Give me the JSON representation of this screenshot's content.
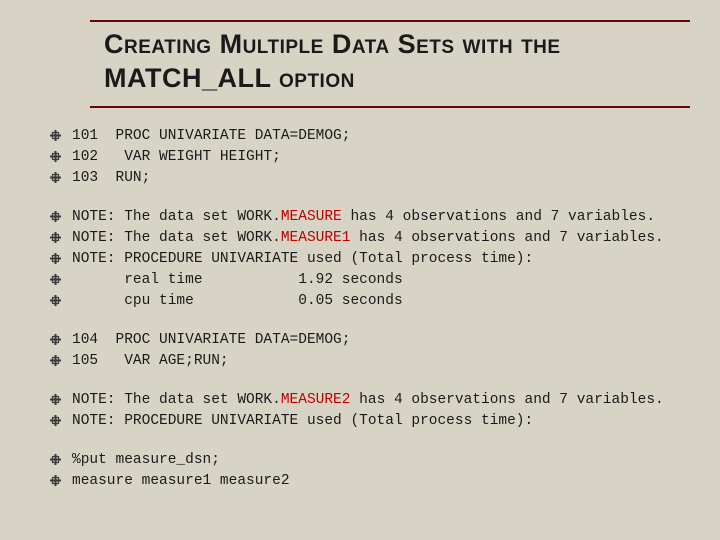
{
  "title": "Creating Multiple Data Sets with the MATCH_ALL option",
  "colors": {
    "background": "#d8d4c5",
    "title_rule": "#6b0000",
    "text": "#1a1a1a",
    "highlight": "#c00000",
    "bullet": "#3a3a3a"
  },
  "typography": {
    "title_fontsize": 27,
    "code_fontsize": 14.5,
    "code_family": "Courier New"
  },
  "lines": [
    {
      "segments": [
        {
          "t": "101  PROC UNIVARIATE DATA=DEMOG;"
        }
      ]
    },
    {
      "segments": [
        {
          "t": "102   VAR WEIGHT HEIGHT;"
        }
      ]
    },
    {
      "segments": [
        {
          "t": "103  RUN;"
        }
      ]
    },
    {
      "gap": true
    },
    {
      "segments": [
        {
          "t": "NOTE: The data set WORK."
        },
        {
          "t": "MEASURE",
          "red": true
        },
        {
          "t": " has 4 observations and 7 variables."
        }
      ]
    },
    {
      "segments": [
        {
          "t": "NOTE: The data set WORK."
        },
        {
          "t": "MEASURE1",
          "red": true
        },
        {
          "t": " has 4 observations and 7 variables."
        }
      ]
    },
    {
      "segments": [
        {
          "t": "NOTE: PROCEDURE UNIVARIATE used (Total process time):"
        }
      ]
    },
    {
      "segments": [
        {
          "t": "      real time           1.92 seconds"
        }
      ]
    },
    {
      "segments": [
        {
          "t": "      cpu time            0.05 seconds"
        }
      ]
    },
    {
      "gap": true
    },
    {
      "segments": [
        {
          "t": "104  PROC UNIVARIATE DATA=DEMOG;"
        }
      ]
    },
    {
      "segments": [
        {
          "t": "105   VAR AGE;RUN;"
        }
      ]
    },
    {
      "gap": true
    },
    {
      "segments": [
        {
          "t": "NOTE: The data set WORK."
        },
        {
          "t": "MEASURE2",
          "red": true
        },
        {
          "t": " has 4 observations and 7 variables."
        }
      ]
    },
    {
      "segments": [
        {
          "t": "NOTE: PROCEDURE UNIVARIATE used (Total process time):"
        }
      ]
    },
    {
      "gap": true
    },
    {
      "segments": [
        {
          "t": "%put measure_dsn;"
        }
      ]
    },
    {
      "segments": [
        {
          "t": "measure measure1 measure2"
        }
      ]
    }
  ]
}
